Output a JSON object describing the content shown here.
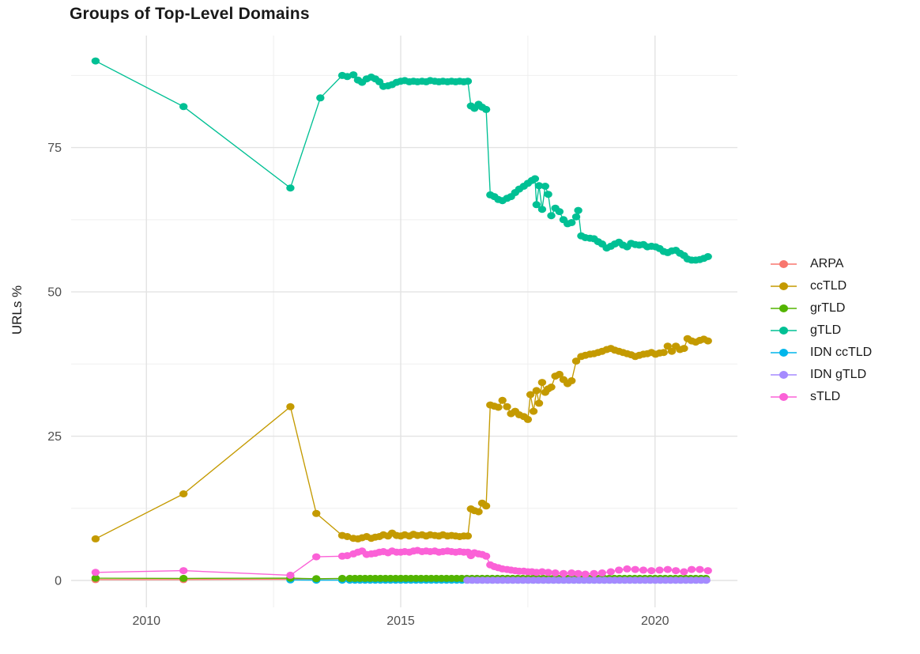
{
  "page_title": "Groups of Top-Level Domains",
  "chart_data": {
    "type": "line",
    "title": "Groups of Top-Level Domains",
    "xlabel": "",
    "ylabel": "URLs %",
    "legend_position": "right",
    "grid": {
      "major_color": "#E3E3E3",
      "minor_color": "#EFEFEF",
      "major_width": 1.4,
      "minor_width": 1
    },
    "x_axis": {
      "min": 2008.52,
      "max": 2021.62,
      "major_ticks": [
        2010,
        2015,
        2020
      ],
      "major_labels": [
        "2010",
        "2015",
        "2020"
      ],
      "minor_ticks": [
        2012.5,
        2017.5
      ]
    },
    "y_axis": {
      "min": -4.66,
      "max": 94.4,
      "major_ticks": [
        0,
        25,
        50,
        75
      ],
      "major_labels": [
        "0",
        "25",
        "50",
        "75"
      ],
      "minor_ticks": [
        12.5,
        37.5,
        62.5,
        87.5
      ]
    },
    "draw_order": [
      "ARPA",
      "ccTLD",
      "IDN ccTLD",
      "grTLD",
      "gTLD",
      "IDN gTLD",
      "sTLD"
    ],
    "series": [
      {
        "name": "ARPA",
        "color": "#F8766D",
        "points": [
          [
            2009.0,
            0.15
          ],
          [
            2010.73,
            0.15
          ],
          [
            2012.83,
            0.2
          ],
          [
            2013.34,
            0.1
          ],
          [
            2013.85,
            0.1
          ]
        ],
        "runs": [
          {
            "from": 2014.0,
            "to": 2021.04,
            "step": 0.1,
            "y": 0.08
          }
        ]
      },
      {
        "name": "ccTLD",
        "color": "#C49A00",
        "points": [
          [
            2009.0,
            7.2
          ],
          [
            2010.73,
            15.0
          ],
          [
            2012.83,
            30.1
          ],
          [
            2013.34,
            11.6
          ],
          [
            2013.85,
            7.8
          ],
          [
            2013.95,
            7.6
          ],
          [
            2014.07,
            7.3
          ],
          [
            2014.16,
            7.2
          ],
          [
            2014.24,
            7.4
          ],
          [
            2014.33,
            7.6
          ],
          [
            2014.42,
            7.3
          ],
          [
            2014.5,
            7.5
          ],
          [
            2014.58,
            7.6
          ],
          [
            2014.66,
            7.9
          ],
          [
            2014.75,
            7.7
          ],
          [
            2014.83,
            8.2
          ],
          [
            2014.92,
            7.8
          ],
          [
            2015.0,
            7.7
          ],
          [
            2015.08,
            7.9
          ],
          [
            2015.17,
            7.7
          ],
          [
            2015.25,
            8.0
          ],
          [
            2015.33,
            7.8
          ],
          [
            2015.42,
            7.9
          ],
          [
            2015.5,
            7.7
          ],
          [
            2015.58,
            7.9
          ],
          [
            2015.67,
            7.8
          ],
          [
            2015.75,
            7.7
          ],
          [
            2015.83,
            7.9
          ],
          [
            2015.92,
            7.7
          ],
          [
            2016.0,
            7.8
          ],
          [
            2016.08,
            7.7
          ],
          [
            2016.16,
            7.6
          ],
          [
            2016.24,
            7.7
          ],
          [
            2016.32,
            7.7
          ],
          [
            2016.38,
            12.4
          ],
          [
            2016.45,
            12.1
          ],
          [
            2016.53,
            11.9
          ],
          [
            2016.6,
            13.4
          ],
          [
            2016.68,
            12.9
          ],
          [
            2016.76,
            30.4
          ],
          [
            2016.84,
            30.2
          ],
          [
            2016.92,
            30.0
          ],
          [
            2017.0,
            31.2
          ],
          [
            2017.09,
            30.1
          ],
          [
            2017.17,
            28.9
          ],
          [
            2017.25,
            29.3
          ],
          [
            2017.33,
            28.7
          ],
          [
            2017.42,
            28.4
          ],
          [
            2017.5,
            27.9
          ],
          [
            2017.55,
            32.2
          ],
          [
            2017.61,
            29.3
          ],
          [
            2017.67,
            32.9
          ],
          [
            2017.72,
            30.7
          ],
          [
            2017.78,
            34.3
          ],
          [
            2017.84,
            32.6
          ],
          [
            2017.9,
            33.2
          ],
          [
            2017.96,
            33.5
          ],
          [
            2018.04,
            35.4
          ],
          [
            2018.12,
            35.7
          ],
          [
            2018.2,
            34.8
          ],
          [
            2018.28,
            34.1
          ],
          [
            2018.36,
            34.6
          ],
          [
            2018.45,
            38.0
          ],
          [
            2018.55,
            38.8
          ],
          [
            2018.63,
            39.0
          ],
          [
            2018.72,
            39.2
          ],
          [
            2018.8,
            39.3
          ],
          [
            2018.88,
            39.5
          ],
          [
            2018.96,
            39.7
          ],
          [
            2019.05,
            40.0
          ],
          [
            2019.13,
            40.2
          ],
          [
            2019.21,
            39.9
          ],
          [
            2019.29,
            39.7
          ],
          [
            2019.37,
            39.5
          ],
          [
            2019.45,
            39.3
          ],
          [
            2019.53,
            39.1
          ],
          [
            2019.61,
            38.8
          ],
          [
            2019.69,
            39.0
          ],
          [
            2019.77,
            39.2
          ],
          [
            2019.85,
            39.3
          ],
          [
            2019.93,
            39.5
          ],
          [
            2020.01,
            39.2
          ],
          [
            2020.09,
            39.4
          ],
          [
            2020.17,
            39.5
          ],
          [
            2020.25,
            40.6
          ],
          [
            2020.33,
            39.7
          ],
          [
            2020.41,
            40.6
          ],
          [
            2020.49,
            40.0
          ],
          [
            2020.57,
            40.2
          ],
          [
            2020.64,
            41.9
          ],
          [
            2020.72,
            41.5
          ],
          [
            2020.8,
            41.3
          ],
          [
            2020.88,
            41.6
          ],
          [
            2020.96,
            41.8
          ],
          [
            2021.04,
            41.5
          ]
        ],
        "runs": []
      },
      {
        "name": "grTLD",
        "color": "#53B400",
        "points": [
          [
            2009.0,
            0.4
          ],
          [
            2010.73,
            0.35
          ],
          [
            2012.83,
            0.4
          ],
          [
            2013.34,
            0.3
          ],
          [
            2013.85,
            0.35
          ]
        ],
        "runs": [
          {
            "from": 2014.0,
            "to": 2021.04,
            "step": 0.1,
            "y": 0.35
          }
        ]
      },
      {
        "name": "gTLD",
        "color": "#00C094",
        "points": [
          [
            2009.0,
            90.0
          ],
          [
            2010.73,
            82.1
          ],
          [
            2012.83,
            68.0
          ],
          [
            2013.42,
            83.6
          ],
          [
            2013.85,
            87.5
          ],
          [
            2013.95,
            87.3
          ],
          [
            2014.07,
            87.6
          ],
          [
            2014.16,
            86.7
          ],
          [
            2014.24,
            86.3
          ],
          [
            2014.33,
            86.9
          ],
          [
            2014.42,
            87.2
          ],
          [
            2014.5,
            86.9
          ],
          [
            2014.58,
            86.4
          ],
          [
            2014.66,
            85.6
          ],
          [
            2014.75,
            85.7
          ],
          [
            2014.83,
            85.9
          ],
          [
            2014.92,
            86.3
          ],
          [
            2015.0,
            86.5
          ],
          [
            2015.08,
            86.6
          ],
          [
            2015.17,
            86.4
          ],
          [
            2015.25,
            86.5
          ],
          [
            2015.33,
            86.4
          ],
          [
            2015.42,
            86.5
          ],
          [
            2015.5,
            86.4
          ],
          [
            2015.58,
            86.6
          ],
          [
            2015.67,
            86.5
          ],
          [
            2015.75,
            86.4
          ],
          [
            2015.83,
            86.5
          ],
          [
            2015.92,
            86.4
          ],
          [
            2016.0,
            86.5
          ],
          [
            2016.08,
            86.4
          ],
          [
            2016.16,
            86.5
          ],
          [
            2016.24,
            86.4
          ],
          [
            2016.32,
            86.5
          ],
          [
            2016.38,
            82.2
          ],
          [
            2016.45,
            81.8
          ],
          [
            2016.53,
            82.5
          ],
          [
            2016.6,
            82.0
          ],
          [
            2016.68,
            81.6
          ],
          [
            2016.76,
            66.8
          ],
          [
            2016.84,
            66.5
          ],
          [
            2016.92,
            66.0
          ],
          [
            2017.0,
            65.8
          ],
          [
            2017.09,
            66.2
          ],
          [
            2017.17,
            66.5
          ],
          [
            2017.25,
            67.2
          ],
          [
            2017.33,
            67.8
          ],
          [
            2017.42,
            68.3
          ],
          [
            2017.5,
            68.8
          ],
          [
            2017.58,
            69.3
          ],
          [
            2017.64,
            69.6
          ],
          [
            2017.67,
            65.1
          ],
          [
            2017.72,
            68.4
          ],
          [
            2017.78,
            64.3
          ],
          [
            2017.84,
            68.3
          ],
          [
            2017.9,
            66.9
          ],
          [
            2017.96,
            63.2
          ],
          [
            2018.04,
            64.5
          ],
          [
            2018.12,
            63.9
          ],
          [
            2018.2,
            62.5
          ],
          [
            2018.28,
            61.8
          ],
          [
            2018.36,
            62.0
          ],
          [
            2018.45,
            63.0
          ],
          [
            2018.49,
            64.1
          ],
          [
            2018.55,
            59.7
          ],
          [
            2018.63,
            59.4
          ],
          [
            2018.72,
            59.3
          ],
          [
            2018.8,
            59.2
          ],
          [
            2018.88,
            58.7
          ],
          [
            2018.96,
            58.3
          ],
          [
            2019.05,
            57.6
          ],
          [
            2019.13,
            57.9
          ],
          [
            2019.21,
            58.3
          ],
          [
            2019.29,
            58.6
          ],
          [
            2019.37,
            58.1
          ],
          [
            2019.45,
            57.8
          ],
          [
            2019.53,
            58.4
          ],
          [
            2019.61,
            58.2
          ],
          [
            2019.69,
            58.1
          ],
          [
            2019.77,
            58.2
          ],
          [
            2019.85,
            57.8
          ],
          [
            2019.93,
            57.9
          ],
          [
            2020.01,
            57.8
          ],
          [
            2020.09,
            57.5
          ],
          [
            2020.17,
            57.0
          ],
          [
            2020.25,
            56.8
          ],
          [
            2020.33,
            57.1
          ],
          [
            2020.41,
            57.2
          ],
          [
            2020.49,
            56.7
          ],
          [
            2020.57,
            56.3
          ],
          [
            2020.64,
            55.7
          ],
          [
            2020.72,
            55.5
          ],
          [
            2020.8,
            55.5
          ],
          [
            2020.88,
            55.6
          ],
          [
            2020.96,
            55.8
          ],
          [
            2021.04,
            56.1
          ]
        ],
        "runs": []
      },
      {
        "name": "IDN ccTLD",
        "color": "#00B6EB",
        "points": [
          [
            2012.83,
            0.1
          ],
          [
            2013.34,
            0.06
          ],
          [
            2013.85,
            0.06
          ]
        ],
        "runs": [
          {
            "from": 2014.0,
            "to": 2021.04,
            "step": 0.1,
            "y": 0.05
          }
        ]
      },
      {
        "name": "IDN gTLD",
        "color": "#A58AFF",
        "points": [],
        "runs": [
          {
            "from": 2016.31,
            "to": 2021.04,
            "step": 0.1,
            "y": 0.04
          }
        ]
      },
      {
        "name": "sTLD",
        "color": "#FB61D7",
        "points": [
          [
            2009.0,
            1.4
          ],
          [
            2010.73,
            1.7
          ],
          [
            2012.83,
            0.9
          ],
          [
            2013.34,
            4.1
          ],
          [
            2013.85,
            4.2
          ],
          [
            2013.95,
            4.3
          ],
          [
            2014.07,
            4.6
          ],
          [
            2014.16,
            4.9
          ],
          [
            2014.24,
            5.1
          ],
          [
            2014.33,
            4.5
          ],
          [
            2014.42,
            4.6
          ],
          [
            2014.5,
            4.7
          ],
          [
            2014.58,
            4.9
          ],
          [
            2014.66,
            5.0
          ],
          [
            2014.75,
            4.8
          ],
          [
            2014.83,
            5.1
          ],
          [
            2014.92,
            4.9
          ],
          [
            2015.0,
            4.9
          ],
          [
            2015.08,
            5.0
          ],
          [
            2015.17,
            4.9
          ],
          [
            2015.25,
            5.1
          ],
          [
            2015.33,
            5.2
          ],
          [
            2015.42,
            5.0
          ],
          [
            2015.5,
            5.1
          ],
          [
            2015.58,
            5.0
          ],
          [
            2015.67,
            5.1
          ],
          [
            2015.75,
            4.9
          ],
          [
            2015.83,
            5.0
          ],
          [
            2015.92,
            5.1
          ],
          [
            2016.0,
            5.0
          ],
          [
            2016.08,
            4.9
          ],
          [
            2016.16,
            5.0
          ],
          [
            2016.24,
            4.9
          ],
          [
            2016.32,
            4.9
          ],
          [
            2016.38,
            4.3
          ],
          [
            2016.45,
            4.8
          ],
          [
            2016.53,
            4.6
          ],
          [
            2016.6,
            4.5
          ],
          [
            2016.68,
            4.2
          ],
          [
            2016.76,
            2.7
          ],
          [
            2016.84,
            2.4
          ],
          [
            2016.92,
            2.2
          ],
          [
            2017.0,
            2.0
          ],
          [
            2017.09,
            1.9
          ],
          [
            2017.17,
            1.8
          ],
          [
            2017.25,
            1.7
          ],
          [
            2017.33,
            1.6
          ],
          [
            2017.42,
            1.6
          ],
          [
            2017.5,
            1.5
          ],
          [
            2017.58,
            1.5
          ],
          [
            2017.67,
            1.4
          ],
          [
            2017.78,
            1.5
          ],
          [
            2017.9,
            1.4
          ],
          [
            2018.04,
            1.3
          ],
          [
            2018.2,
            1.2
          ],
          [
            2018.36,
            1.3
          ],
          [
            2018.49,
            1.2
          ],
          [
            2018.63,
            1.1
          ],
          [
            2018.8,
            1.2
          ],
          [
            2018.96,
            1.3
          ],
          [
            2019.13,
            1.5
          ],
          [
            2019.29,
            1.8
          ],
          [
            2019.45,
            2.0
          ],
          [
            2019.61,
            1.9
          ],
          [
            2019.77,
            1.8
          ],
          [
            2019.93,
            1.7
          ],
          [
            2020.09,
            1.8
          ],
          [
            2020.25,
            1.9
          ],
          [
            2020.41,
            1.7
          ],
          [
            2020.57,
            1.5
          ],
          [
            2020.72,
            1.9
          ],
          [
            2020.88,
            1.9
          ],
          [
            2021.04,
            1.7
          ]
        ],
        "runs": []
      }
    ]
  }
}
